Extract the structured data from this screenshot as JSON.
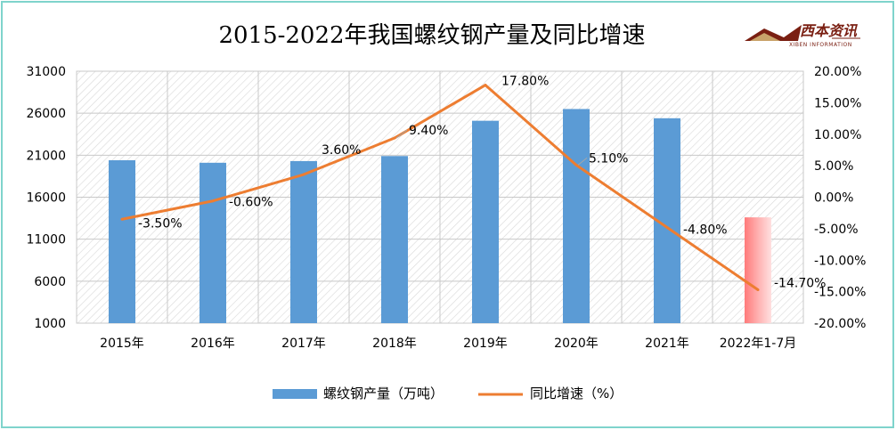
{
  "logo": {
    "name": "西本资讯",
    "subtitle": "XIBEN INFORMATION"
  },
  "chart_data": {
    "type": "bar+line",
    "title": "2015-2022年我国螺纹钢产量及同比增速",
    "categories": [
      "2015年",
      "2016年",
      "2017年",
      "2018年",
      "2019年",
      "2020年",
      "2021年",
      "2022年1-7月"
    ],
    "series": [
      {
        "name": "螺纹钢产量（万吨）",
        "type": "bar",
        "axis": "left",
        "values": [
          20400,
          20100,
          20300,
          20900,
          25100,
          26500,
          25400,
          13600
        ]
      },
      {
        "name": "同比增速（%）",
        "type": "line",
        "axis": "right",
        "values": [
          -3.5,
          -0.6,
          3.6,
          9.4,
          17.8,
          5.1,
          -4.8,
          -14.7
        ],
        "labels": [
          "-3.50%",
          "-0.60%",
          "3.60%",
          "9.40%",
          "17.80%",
          "5.10%",
          "-4.80%",
          "-14.70%"
        ]
      }
    ],
    "y_left": {
      "min": 1000,
      "max": 31000,
      "ticks": [
        "31000",
        "26000",
        "21000",
        "16000",
        "11000",
        "6000",
        "1000"
      ],
      "tick_values": [
        31000,
        26000,
        21000,
        16000,
        11000,
        6000,
        1000
      ]
    },
    "y_right": {
      "min": -20,
      "max": 20,
      "ticks": [
        "20.00%",
        "15.00%",
        "10.00%",
        "5.00%",
        "0.00%",
        "-5.00%",
        "-10.00%",
        "-15.00%",
        "-20.00%"
      ],
      "tick_values": [
        20,
        15,
        10,
        5,
        0,
        -5,
        -10,
        -15,
        -20
      ]
    },
    "grid": true,
    "legend_position": "bottom",
    "colors": {
      "bar": "#5b9bd5",
      "bar_highlight": "#ff8080",
      "line": "#ed7d31",
      "frame": "#7fd4cc"
    }
  }
}
